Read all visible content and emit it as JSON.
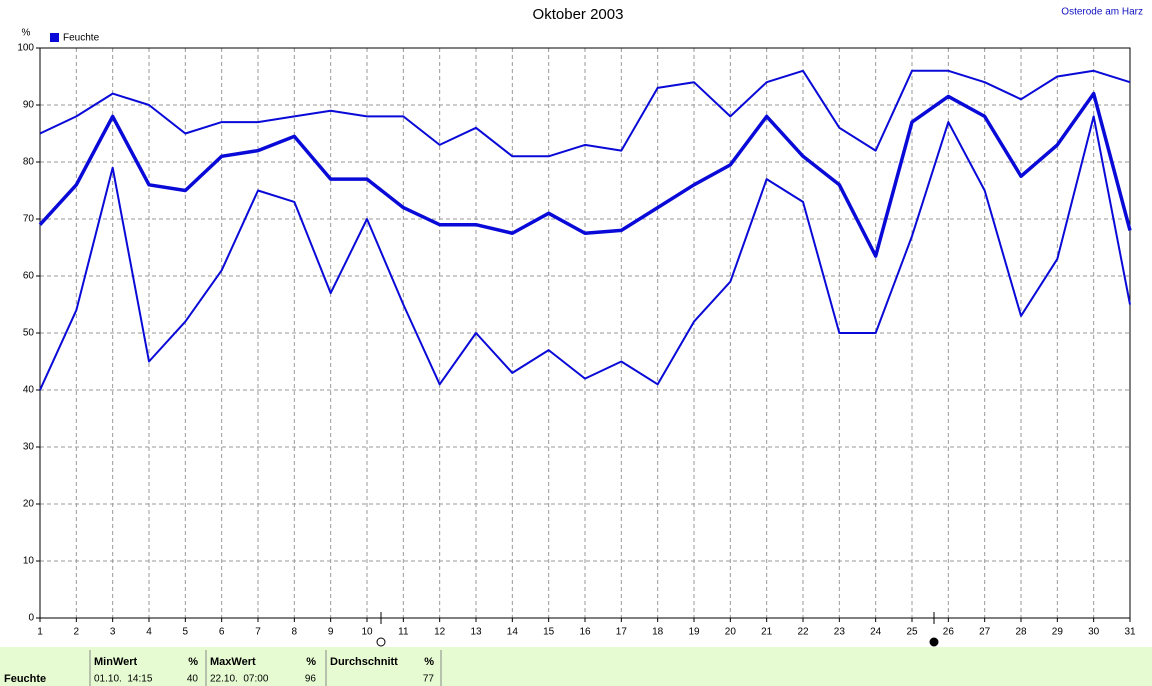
{
  "chart_data": {
    "type": "line",
    "title": "Oktober 2003",
    "location": "Osterode am Harz",
    "y_unit": "%",
    "x": [
      1,
      2,
      3,
      4,
      5,
      6,
      7,
      8,
      9,
      10,
      11,
      12,
      13,
      14,
      15,
      16,
      17,
      18,
      19,
      20,
      21,
      22,
      23,
      24,
      25,
      26,
      27,
      28,
      29,
      30,
      31
    ],
    "xlim": [
      1,
      31
    ],
    "xticks": [
      1,
      2,
      3,
      4,
      5,
      6,
      7,
      8,
      9,
      10,
      11,
      12,
      13,
      14,
      15,
      16,
      17,
      18,
      19,
      20,
      21,
      22,
      23,
      24,
      25,
      26,
      27,
      28,
      29,
      30,
      31
    ],
    "ylim": [
      0,
      100
    ],
    "yticks": [
      0,
      10,
      20,
      30,
      40,
      50,
      60,
      70,
      80,
      90,
      100
    ],
    "grid": true,
    "legend": "top-left",
    "series": [
      {
        "color": "#0a0ad8",
        "line_width": 2,
        "values": [
          85,
          88,
          92,
          90,
          85,
          87,
          87,
          88,
          89,
          88,
          88,
          83,
          86,
          81,
          81,
          83,
          82,
          93,
          94,
          88,
          94,
          96,
          86,
          82,
          96,
          96,
          94,
          91,
          95,
          96,
          94
        ]
      },
      {
        "name": "Feuchte",
        "color": "#0a0ad8",
        "line_width": 3.5,
        "values": [
          69,
          76,
          88,
          76,
          75,
          81,
          82,
          84.5,
          77,
          77,
          72,
          69,
          69,
          67.5,
          71,
          67.5,
          68,
          72,
          76,
          79.5,
          88,
          81,
          76,
          63.5,
          87,
          91.5,
          88,
          77.5,
          83,
          92,
          68
        ]
      },
      {
        "color": "#0a0ad8",
        "line_width": 2,
        "values": [
          40,
          54,
          79,
          45,
          52,
          61,
          75,
          73,
          57,
          70,
          55,
          41,
          50,
          43,
          47,
          42,
          45,
          41,
          52,
          59,
          77,
          73,
          50,
          50,
          67,
          87,
          75,
          53,
          63,
          88,
          55
        ]
      }
    ]
  },
  "summary": {
    "row_label": "Feuchte",
    "columns": [
      {
        "header": "MinWert",
        "unit": "%",
        "time": "01.10.  14:15",
        "value": 40
      },
      {
        "header": "MaxWert",
        "unit": "%",
        "time": "22.10.  07:00",
        "value": 96
      },
      {
        "header": "Durchschnitt",
        "unit": "%",
        "value": 77
      }
    ]
  }
}
